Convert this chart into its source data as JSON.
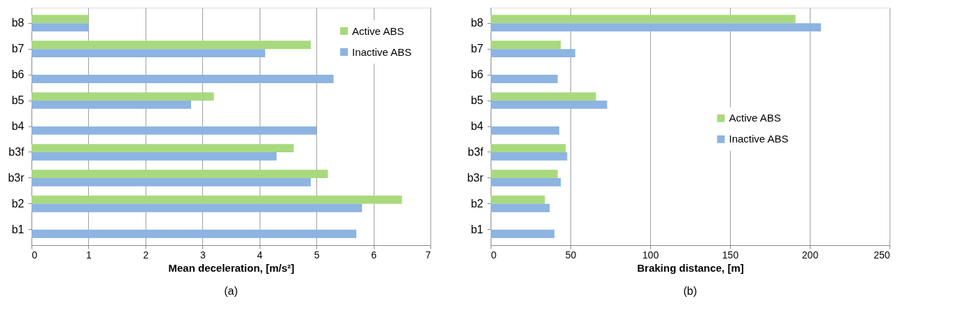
{
  "chart_data": [
    {
      "type": "bar",
      "orientation": "horizontal",
      "xlabel": "Mean deceleration, [m/s²]",
      "categories": [
        "b8",
        "b7",
        "b6",
        "b5",
        "b4",
        "b3f",
        "b3r",
        "b2",
        "b1"
      ],
      "series": [
        {
          "name": "Active ABS",
          "color": "#a9d97e",
          "values": [
            1.0,
            4.9,
            null,
            3.2,
            null,
            4.6,
            5.2,
            6.5,
            null
          ]
        },
        {
          "name": "Inactive ABS",
          "color": "#8db4e2",
          "values": [
            1.0,
            4.1,
            5.3,
            2.8,
            5.0,
            4.3,
            4.9,
            5.8,
            5.7
          ]
        }
      ],
      "xlim": [
        0,
        7
      ],
      "xticks": [
        0,
        1,
        2,
        3,
        4,
        5,
        6,
        7
      ],
      "grid": "x",
      "legend": "top right",
      "annotations": [
        "(a)"
      ]
    },
    {
      "type": "bar",
      "orientation": "horizontal",
      "xlabel": "Braking distance, [m]",
      "categories": [
        "b8",
        "b7",
        "b6",
        "b5",
        "b4",
        "b3f",
        "b3r",
        "b2",
        "b1"
      ],
      "series": [
        {
          "name": "Active ABS",
          "color": "#a9d97e",
          "values": [
            191,
            44,
            null,
            66,
            null,
            47,
            42,
            34,
            null
          ]
        },
        {
          "name": "Inactive ABS",
          "color": "#8db4e2",
          "values": [
            207,
            53,
            42,
            73,
            43,
            48,
            44,
            37,
            40
          ]
        }
      ],
      "xlim": [
        0,
        250
      ],
      "xticks": [
        0,
        50,
        100,
        150,
        200,
        250
      ],
      "grid": "x",
      "legend": "right",
      "annotations": [
        "(b)"
      ]
    }
  ]
}
